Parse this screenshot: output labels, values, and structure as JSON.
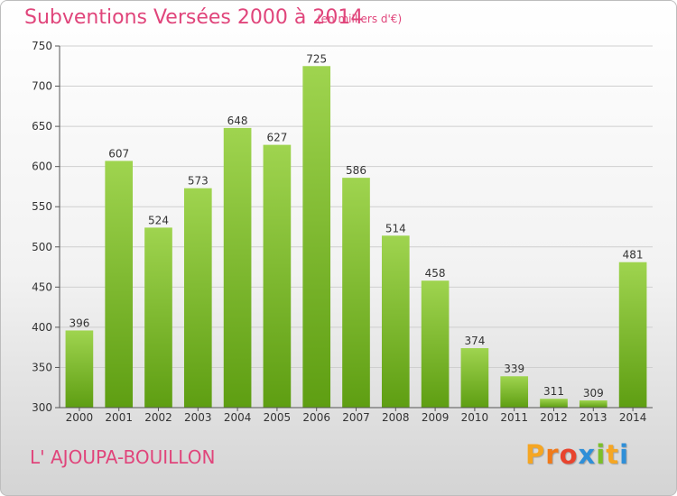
{
  "header": {
    "title": "Subventions Versées 2000 à 2014",
    "subtitle": "(en milliers d'€)"
  },
  "footer": {
    "commune": "L' AJOUPA-BOUILLON",
    "logo": {
      "letters": [
        "P",
        "r",
        "o",
        "x",
        "i",
        "t",
        "i"
      ],
      "colors": [
        "#f5a623",
        "#f07a1a",
        "#e8442e",
        "#2f8fd8",
        "#7bbf2a",
        "#f5a623",
        "#2f8fd8"
      ]
    }
  },
  "chart_data": {
    "type": "bar",
    "categories": [
      "2000",
      "2001",
      "2002",
      "2003",
      "2004",
      "2005",
      "2006",
      "2007",
      "2008",
      "2009",
      "2010",
      "2011",
      "2012",
      "2013",
      "2014"
    ],
    "values": [
      396,
      607,
      524,
      573,
      648,
      627,
      725,
      586,
      514,
      458,
      374,
      339,
      311,
      309,
      481
    ],
    "ylim": [
      300,
      750
    ],
    "yticks": [
      300,
      350,
      400,
      450,
      500,
      550,
      600,
      650,
      700,
      750
    ],
    "grid": true,
    "bar_color_top": "#9fd44f",
    "bar_color_bottom": "#5e9e12",
    "grid_color": "#cfcfcf",
    "axis_color": "#555555",
    "title_color": "#e0457b"
  }
}
